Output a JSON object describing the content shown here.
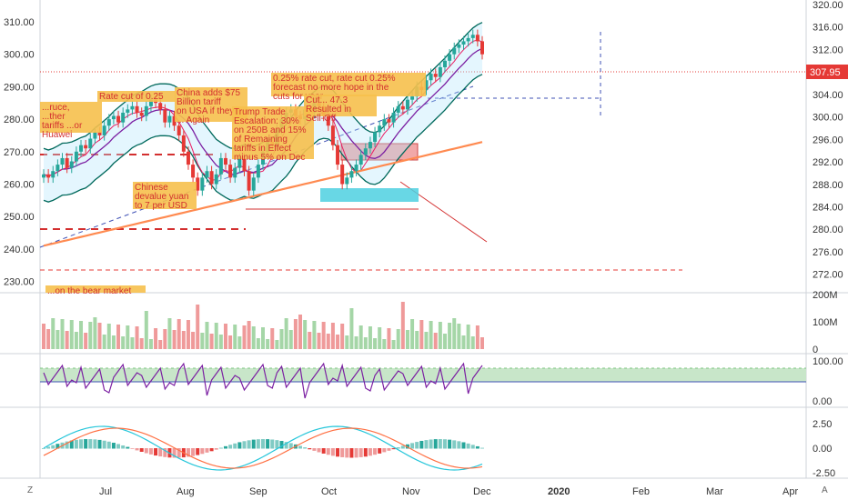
{
  "chart_data": [
    {
      "type": "candlestick",
      "title": "",
      "xlabel": "",
      "ylabel": "",
      "x_ticks": [
        "Jul",
        "Aug",
        "Sep",
        "Oct",
        "Nov",
        "Dec",
        "2020",
        "Feb",
        "Mar",
        "Apr"
      ],
      "left_axis": {
        "ticks": [
          230.0,
          240.0,
          250.0,
          260.0,
          270.0,
          280.0,
          290.0,
          300.0,
          310.0
        ],
        "labels": [
          "230.00",
          "240.00",
          "250.00",
          "260.00",
          "270.00",
          "280.00",
          "290.00",
          "300.00",
          "310.00"
        ]
      },
      "right_axis": {
        "ticks": [
          272.0,
          276.0,
          280.0,
          284.0,
          288.0,
          292.0,
          296.0,
          300.0,
          304.0,
          308.0,
          312.0,
          316.0,
          320.0
        ],
        "labels": [
          "272.00",
          "276.00",
          "280.00",
          "284.00",
          "288.00",
          "292.00",
          "296.00",
          "300.00",
          "304.00",
          "308.00",
          "312.00",
          "316.00",
          "320.00"
        ]
      },
      "last_price": {
        "value": 307.95,
        "label": "307.95"
      },
      "closes": [
        263,
        262,
        264,
        266,
        268,
        265,
        267,
        270,
        272,
        271,
        274,
        276,
        275,
        278,
        280,
        281,
        279,
        282,
        283,
        284,
        282,
        281,
        284,
        286,
        285,
        283,
        279,
        281,
        278,
        275,
        270,
        266,
        262,
        258,
        262,
        264,
        260,
        263,
        268,
        266,
        262,
        265,
        268,
        264,
        258,
        262,
        266,
        270,
        273,
        272,
        277,
        280,
        282,
        283,
        281,
        280,
        283,
        282,
        285,
        284,
        281,
        278,
        272,
        266,
        260,
        262,
        264,
        266,
        269,
        271,
        273,
        276,
        278,
        280,
        279,
        282,
        284,
        283,
        286,
        287,
        290,
        289,
        292,
        294,
        293,
        296,
        298,
        300,
        302,
        303,
        304,
        305,
        306,
        304,
        300
      ],
      "annotations": [
        {
          "text": "Rate cut of 0.25"
        },
        {
          "text": "China adds $75 Billion tariff on USA if they ... Again"
        },
        {
          "text": "Trump Trade Escalation: 30% on 250B and 15% of Remaining tariffs in Effect minus 5% on Dec 1st"
        },
        {
          "text": "0.25% rate cut, rate cut 0.25% forecast no more hope in the cuts for year"
        },
        {
          "text": "Cut... 47.3 Resulted in Sell-Off"
        },
        {
          "text": "...ruce, ...ther tariffs ...or Huawei farmers"
        },
        {
          "text": "Chinese devalue yuan to 7 per USD"
        },
        {
          "text": "...on the bear market"
        }
      ]
    },
    {
      "type": "bar",
      "title": "",
      "y_ticks": [
        "200M",
        "100M",
        "0"
      ]
    },
    {
      "type": "line",
      "title": "",
      "y_ticks": [
        "100.00",
        "0.00"
      ]
    },
    {
      "type": "bar",
      "title": "",
      "y_ticks": [
        "2.50",
        "0.00",
        "-2.50"
      ]
    }
  ],
  "corner": {
    "left": "Z",
    "right": "A"
  }
}
